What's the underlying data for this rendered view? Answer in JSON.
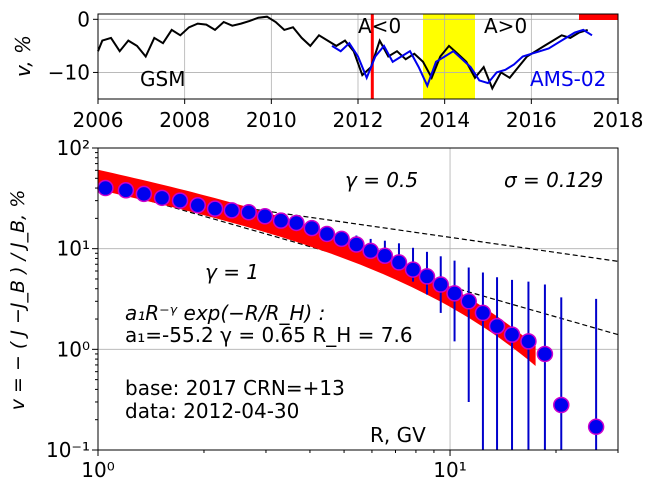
{
  "chart_data": [
    {
      "type": "line",
      "ylabel": "v, %",
      "xlim": [
        2006,
        2018
      ],
      "ylim": [
        -15,
        1
      ],
      "x_ticks": [
        "2006",
        "2008",
        "2010",
        "2012",
        "2014",
        "2016",
        "2018"
      ],
      "y_ticks": [
        "0",
        "−10"
      ],
      "grid": true,
      "series": [
        {
          "name": "GSM",
          "color": "#000000",
          "x": [
            2006.0,
            2006.1,
            2006.3,
            2006.5,
            2006.7,
            2006.9,
            2007.1,
            2007.3,
            2007.5,
            2007.7,
            2007.9,
            2008.1,
            2008.3,
            2008.5,
            2008.7,
            2008.9,
            2009.1,
            2009.3,
            2009.5,
            2009.7,
            2009.9,
            2010.1,
            2010.3,
            2010.5,
            2010.7,
            2010.9,
            2011.1,
            2011.3,
            2011.5,
            2011.7,
            2011.9,
            2012.1,
            2012.3,
            2012.5,
            2012.7,
            2012.9,
            2013.1,
            2013.3,
            2013.5,
            2013.7,
            2013.9,
            2014.1,
            2014.3,
            2014.5,
            2014.7,
            2014.9,
            2015.1,
            2015.3,
            2015.5,
            2015.7,
            2015.9,
            2016.1,
            2016.3,
            2016.5,
            2016.7,
            2016.9,
            2017.1,
            2017.3
          ],
          "y": [
            -6.0,
            -4.0,
            -3.5,
            -6.0,
            -4.0,
            -5.0,
            -7.0,
            -3.5,
            -4.5,
            -2.0,
            -3.0,
            -1.5,
            -0.8,
            -1.0,
            -2.0,
            -0.5,
            -1.2,
            -0.8,
            -0.3,
            0.3,
            0.5,
            -0.5,
            -2.0,
            -1.5,
            -3.5,
            -5.0,
            -3.0,
            -4.0,
            -5.0,
            -4.0,
            -6.0,
            -10.5,
            -9.0,
            -4.0,
            -7.0,
            -6.0,
            -7.5,
            -6.5,
            -8.0,
            -11.0,
            -7.0,
            -5.0,
            -6.5,
            -8.0,
            -11.0,
            -9.0,
            -13.0,
            -10.0,
            -11.0,
            -9.0,
            -7.0,
            -6.0,
            -5.0,
            -4.0,
            -3.0,
            -3.5,
            -2.5,
            -2.0
          ]
        },
        {
          "name": "AMS-02",
          "color": "#0000ee",
          "x": [
            2011.4,
            2011.6,
            2011.8,
            2012.0,
            2012.2,
            2012.4,
            2012.6,
            2012.8,
            2013.0,
            2013.2,
            2013.4,
            2013.6,
            2013.8,
            2014.0,
            2014.2,
            2014.4,
            2014.6,
            2014.8,
            2015.0,
            2015.2,
            2015.4,
            2015.6,
            2015.8,
            2016.0,
            2016.2,
            2016.4,
            2016.6,
            2016.8,
            2017.0,
            2017.2,
            2017.4
          ],
          "y": [
            -5.0,
            -6.0,
            -4.5,
            -7.0,
            -11.0,
            -7.0,
            -5.0,
            -8.0,
            -7.0,
            -6.0,
            -9.0,
            -12.5,
            -8.0,
            -7.0,
            -6.0,
            -7.5,
            -9.0,
            -11.5,
            -12.0,
            -10.0,
            -9.5,
            -8.5,
            -7.0,
            -6.5,
            -6.0,
            -5.5,
            -4.5,
            -3.5,
            -2.5,
            -2.0,
            -3.0
          ]
        }
      ],
      "annotations": {
        "a_neg": "A<0",
        "a_pos": "A>0",
        "gsm_label": "GSM",
        "ams_label": "AMS-02"
      },
      "reversal_band": [
        2013.5,
        2014.7
      ],
      "reversal_band_color": "#ffff00",
      "marker_line_x": 2012.33,
      "marker_line_color": "#ff0000",
      "base_bar": [
        2017.1,
        2018.0
      ],
      "base_bar_color": "#ff0000"
    },
    {
      "type": "scatter",
      "xscale": "log",
      "yscale": "log",
      "xlim": [
        1.0,
        30.0
      ],
      "ylim": [
        0.1,
        100
      ],
      "xlabel": "R, GV",
      "ylabel": "v = − ( J −J_B ) / J_B, %",
      "x_ticks": [
        "10⁰",
        "10¹"
      ],
      "y_ticks": [
        "10⁻¹",
        "10⁰",
        "10¹",
        "10²"
      ],
      "grid": true,
      "marker_color": "#0000ee",
      "marker_edge_color": "#cc00cc",
      "errorbar_color": "#0000cc",
      "points": {
        "x": [
          1.05,
          1.2,
          1.35,
          1.52,
          1.71,
          1.92,
          2.15,
          2.4,
          2.68,
          2.98,
          3.31,
          3.66,
          4.05,
          4.47,
          4.92,
          5.42,
          5.95,
          6.53,
          7.16,
          7.85,
          8.6,
          9.41,
          10.3,
          11.3,
          12.4,
          13.6,
          15.0,
          16.7,
          18.6,
          20.7,
          26.0
        ],
        "y": [
          40,
          38,
          35,
          32,
          30,
          27,
          25,
          24,
          23,
          21,
          19,
          18,
          16,
          14,
          12.5,
          11,
          9.5,
          8.5,
          7.3,
          6.2,
          5.3,
          4.4,
          3.6,
          3.0,
          2.3,
          1.7,
          1.4,
          1.2,
          0.9,
          0.28,
          0.17
        ],
        "yerr_lo": [
          0.8,
          0.8,
          0.7,
          0.7,
          0.6,
          0.6,
          0.6,
          0.5,
          0.5,
          0.5,
          0.5,
          0.5,
          0.5,
          0.5,
          0.5,
          0.5,
          0.7,
          0.9,
          1.2,
          1.5,
          1.8,
          2.1,
          2.4,
          2.7,
          2.2,
          1.7,
          1.4,
          1.1,
          0.8,
          0.26,
          0.16
        ],
        "yerr_hi": [
          0.8,
          0.8,
          0.7,
          0.7,
          0.6,
          0.6,
          0.6,
          0.5,
          0.5,
          0.5,
          0.5,
          0.5,
          0.5,
          0.5,
          1.5,
          2.5,
          3.0,
          3.5,
          4.0,
          4.0,
          4.0,
          4.0,
          4.0,
          3.5,
          3.5,
          3.5,
          3.5,
          3.5,
          3.5,
          3.0,
          3.0
        ]
      },
      "fit": {
        "a1": -55.2,
        "gamma": 0.65,
        "RH": 7.6,
        "x_range": [
          1.0,
          17.5
        ],
        "color": "#ff0000"
      },
      "ref_lines": [
        {
          "gamma": 0.5,
          "x_start": 1.05,
          "y_start": 40
        },
        {
          "gamma": 1.0,
          "x_start": 1.05,
          "y_start": 40
        }
      ],
      "labels": {
        "gamma_half": "γ = 0.5",
        "sigma": "σ = 0.129",
        "gamma_one": "γ = 1",
        "formula_line1": "a₁R⁻ᵞ exp(−R/R_H) :",
        "formula_line2": "a₁=-55.2  γ = 0.65  R_H =  7.6",
        "base_line": "base: 2017   CRN=+13",
        "data_line": "data: 2012-04-30"
      }
    }
  ]
}
